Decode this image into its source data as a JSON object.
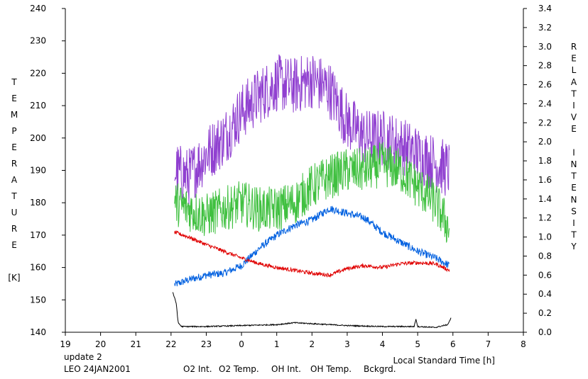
{
  "chart_data": {
    "type": "line",
    "xlabel": "Local Standard Time [h]",
    "ylabel_left": [
      "T",
      "E",
      "M",
      "P",
      "E",
      "R",
      "A",
      "T",
      "U",
      "R",
      "E",
      "",
      "[K]"
    ],
    "ylabel_right": [
      "R",
      "E",
      "L",
      "A",
      "T",
      "I",
      "V",
      "E",
      "",
      "I",
      "N",
      "T",
      "E",
      "N",
      "S",
      "I",
      "T",
      "Y"
    ],
    "x_tick_labels": [
      "19",
      "20",
      "21",
      "22",
      "23",
      "0",
      "1",
      "2",
      "3",
      "4",
      "5",
      "6",
      "7",
      "8"
    ],
    "xlim": [
      19,
      32
    ],
    "y_left_lim": [
      140,
      240
    ],
    "y_left_ticks": [
      140,
      150,
      160,
      170,
      180,
      190,
      200,
      210,
      220,
      230,
      240
    ],
    "y_right_lim": [
      0.0,
      3.4
    ],
    "y_right_ticks": [
      "0.0",
      "0.2",
      "0.4",
      "0.6",
      "0.8",
      "1.0",
      "1.2",
      "1.4",
      "1.6",
      "1.8",
      "2.0",
      "2.2",
      "2.4",
      "2.6",
      "2.8",
      "3.0",
      "3.2",
      "3.4"
    ],
    "footer": {
      "update": "update 2",
      "station": "LEO 24JAN2001"
    },
    "series": [
      {
        "name": "O2 Int.",
        "color": "#0060e0",
        "axis": "right",
        "noise": 0.04,
        "x": [
          22.1,
          22.5,
          23.0,
          23.5,
          24.0,
          24.5,
          25.0,
          25.5,
          26.0,
          26.5,
          27.0,
          27.5,
          28.0,
          28.5,
          29.0,
          29.5,
          29.9
        ],
        "y": [
          0.5,
          0.55,
          0.6,
          0.62,
          0.7,
          0.88,
          1.02,
          1.12,
          1.18,
          1.3,
          1.25,
          1.2,
          1.05,
          0.95,
          0.85,
          0.78,
          0.7
        ]
      },
      {
        "name": "O2 Temp.",
        "color": "#9040d0",
        "axis": "left",
        "noise": 9,
        "x": [
          22.1,
          22.5,
          23.0,
          23.5,
          24.0,
          24.5,
          25.0,
          25.5,
          26.0,
          26.5,
          27.0,
          27.5,
          28.0,
          28.5,
          29.0,
          29.5,
          29.9
        ],
        "y": [
          190,
          188,
          195,
          200,
          208,
          213,
          217,
          216,
          218,
          215,
          205,
          200,
          200,
          198,
          195,
          192,
          190
        ]
      },
      {
        "name": "OH Int.",
        "color": "#e00000",
        "axis": "right",
        "noise": 0.02,
        "x": [
          22.1,
          22.5,
          23.0,
          23.5,
          24.0,
          24.5,
          25.0,
          25.5,
          26.0,
          26.5,
          27.0,
          27.5,
          28.0,
          28.5,
          29.0,
          29.5,
          29.9
        ],
        "y": [
          1.05,
          1.0,
          0.92,
          0.85,
          0.78,
          0.72,
          0.68,
          0.65,
          0.62,
          0.6,
          0.67,
          0.7,
          0.68,
          0.72,
          0.73,
          0.72,
          0.65
        ]
      },
      {
        "name": "OH Temp.",
        "color": "#40c040",
        "axis": "left",
        "noise": 7,
        "x": [
          22.1,
          22.5,
          23.0,
          23.5,
          24.0,
          24.5,
          25.0,
          25.5,
          26.0,
          26.5,
          27.0,
          27.5,
          28.0,
          28.5,
          29.0,
          29.5,
          29.9
        ],
        "y": [
          180,
          178,
          176,
          178,
          180,
          178,
          178,
          180,
          185,
          188,
          190,
          190,
          192,
          190,
          185,
          180,
          172
        ]
      },
      {
        "name": "Bckgrd.",
        "color": "#000000",
        "axis": "right",
        "noise": 0.006,
        "x": [
          22.05,
          22.15,
          22.2,
          22.3,
          22.5,
          23.0,
          24.0,
          25.0,
          25.5,
          26.0,
          27.0,
          28.0,
          28.9,
          28.95,
          29.0,
          29.5,
          29.85,
          29.95
        ],
        "y": [
          0.42,
          0.3,
          0.1,
          0.06,
          0.06,
          0.06,
          0.07,
          0.08,
          0.1,
          0.09,
          0.07,
          0.06,
          0.06,
          0.14,
          0.06,
          0.05,
          0.08,
          0.15
        ]
      }
    ]
  }
}
